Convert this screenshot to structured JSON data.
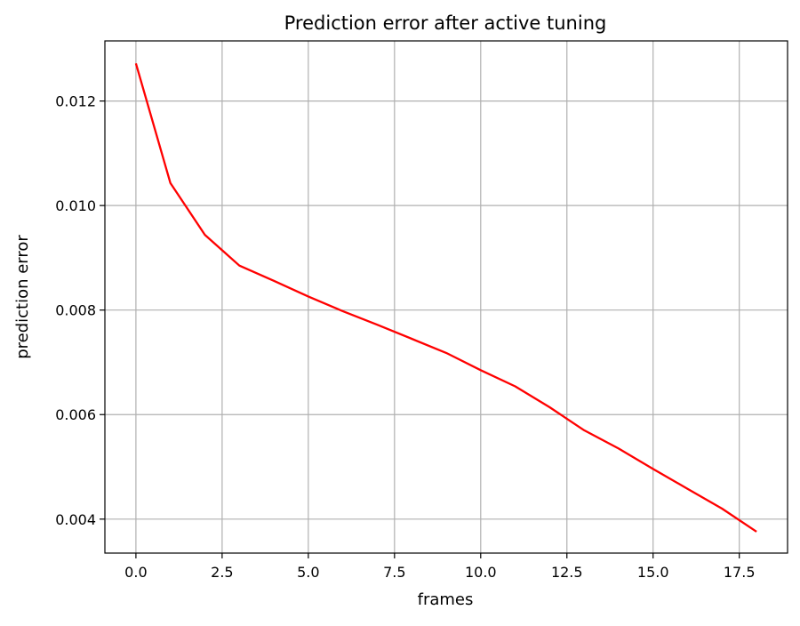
{
  "chart_data": {
    "type": "line",
    "title": "Prediction error after active tuning",
    "xlabel": "frames",
    "ylabel": "prediction error",
    "xlim": [
      -0.9,
      18.9
    ],
    "ylim": [
      0.00335,
      0.01315
    ],
    "xticks": [
      0.0,
      2.5,
      5.0,
      7.5,
      10.0,
      12.5,
      15.0,
      17.5
    ],
    "xtick_labels": [
      "0.0",
      "2.5",
      "5.0",
      "7.5",
      "10.0",
      "12.5",
      "15.0",
      "17.5"
    ],
    "yticks": [
      0.004,
      0.006,
      0.008,
      0.01,
      0.012
    ],
    "ytick_labels": [
      "0.004",
      "0.006",
      "0.008",
      "0.010",
      "0.012"
    ],
    "grid": true,
    "series": [
      {
        "color": "#ff0000",
        "x": [
          0,
          1,
          2,
          3,
          4,
          5,
          6,
          7,
          8,
          9,
          10,
          11,
          12,
          13,
          14,
          15,
          16,
          17,
          18
        ],
        "y": [
          0.01272,
          0.01043,
          0.00944,
          0.00885,
          0.00856,
          0.00826,
          0.00798,
          0.00772,
          0.00745,
          0.00718,
          0.00685,
          0.00654,
          0.00614,
          0.0057,
          0.00535,
          0.00496,
          0.00458,
          0.0042,
          0.00376
        ]
      }
    ]
  }
}
